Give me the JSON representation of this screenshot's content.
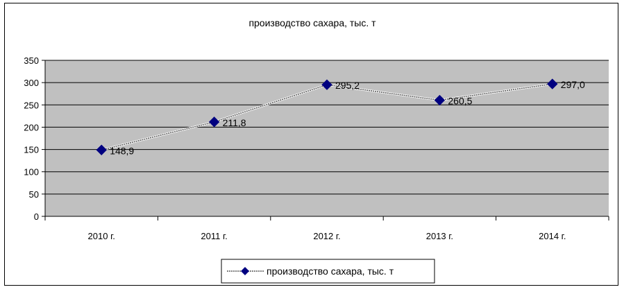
{
  "chart_data": {
    "type": "line",
    "title": "производство сахара, тыс. т",
    "categories": [
      "2010 г.",
      "2011 г.",
      "2012 г.",
      "2013 г.",
      "2014 г."
    ],
    "series": [
      {
        "name": "производство сахара, тыс. т",
        "values": [
          148.9,
          211.8,
          295.2,
          260.5,
          297.0
        ],
        "data_labels": [
          "148,9",
          "211,8",
          "295,2",
          "260,5",
          "297,0"
        ]
      }
    ],
    "y_ticks": [
      "0",
      "50",
      "100",
      "150",
      "200",
      "250",
      "300",
      "350"
    ],
    "ylim": [
      0,
      350
    ],
    "ytick_step": 50,
    "grid": true,
    "legend_position": "bottom",
    "xlabel": "",
    "ylabel": ""
  },
  "colors": {
    "plot_area": "#c0c0c0",
    "gridline": "#000000",
    "marker": "#000080",
    "line": "#555555",
    "text": "#000000"
  }
}
